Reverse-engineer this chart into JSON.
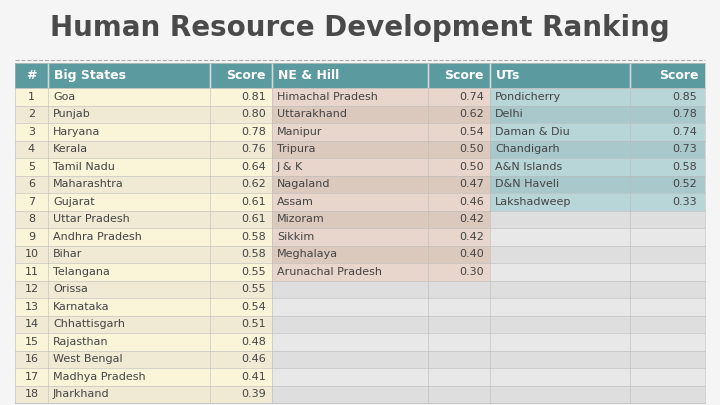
{
  "title": "Human Resource Development Ranking",
  "title_fontsize": 20,
  "title_color": "#4a4a4a",
  "background_color": "#f5f5f5",
  "header_bg_color": "#5b9ba0",
  "header_text_color": "#ffffff",
  "header_fontsize": 9,
  "data_fontsize": 8,
  "headers": [
    "#",
    "Big States",
    "Score",
    "NE & Hill",
    "Score",
    "UTs",
    "Score"
  ],
  "big_states": {
    "ranks": [
      1,
      2,
      3,
      4,
      5,
      6,
      7,
      8,
      9,
      10,
      11,
      12,
      13,
      14,
      15,
      16,
      17,
      18
    ],
    "names": [
      "Goa",
      "Punjab",
      "Haryana",
      "Kerala",
      "Tamil Nadu",
      "Maharashtra",
      "Gujarat",
      "Uttar Pradesh",
      "Andhra Pradesh",
      "Bihar",
      "Telangana",
      "Orissa",
      "Karnataka",
      "Chhattisgarh",
      "Rajasthan",
      "West Bengal",
      "Madhya Pradesh",
      "Jharkhand"
    ],
    "scores": [
      0.81,
      0.8,
      0.78,
      0.76,
      0.64,
      0.62,
      0.61,
      0.61,
      0.58,
      0.58,
      0.55,
      0.55,
      0.54,
      0.51,
      0.48,
      0.46,
      0.41,
      0.39
    ],
    "row_colors_odd": "#faf4d9",
    "row_colors_even": "#f0ead4"
  },
  "ne_hill": {
    "names": [
      "Himachal Pradesh",
      "Uttarakhand",
      "Manipur",
      "Tripura",
      "J & K",
      "Nagaland",
      "Assam",
      "Mizoram",
      "Sikkim",
      "Meghalaya",
      "Arunachal Pradesh"
    ],
    "scores": [
      0.74,
      0.62,
      0.54,
      0.5,
      0.5,
      0.47,
      0.46,
      0.42,
      0.42,
      0.4,
      0.3
    ],
    "row_colors_odd": "#e8d5cc",
    "row_colors_even": "#dbc9be"
  },
  "uts": {
    "names": [
      "Pondicherry",
      "Delhi",
      "Daman & Diu",
      "Chandigarh",
      "A&N Islands",
      "D&N Haveli",
      "Lakshadweep"
    ],
    "scores": [
      0.85,
      0.78,
      0.74,
      0.73,
      0.58,
      0.52,
      0.33
    ],
    "row_colors_odd": "#b8d5d8",
    "row_colors_even": "#a8c8cc"
  },
  "empty_odd": "#e8e8e8",
  "empty_even": "#dedede",
  "border_color": "#bbbbbb",
  "separator_color": "#aaaaaa",
  "text_color": "#444444"
}
